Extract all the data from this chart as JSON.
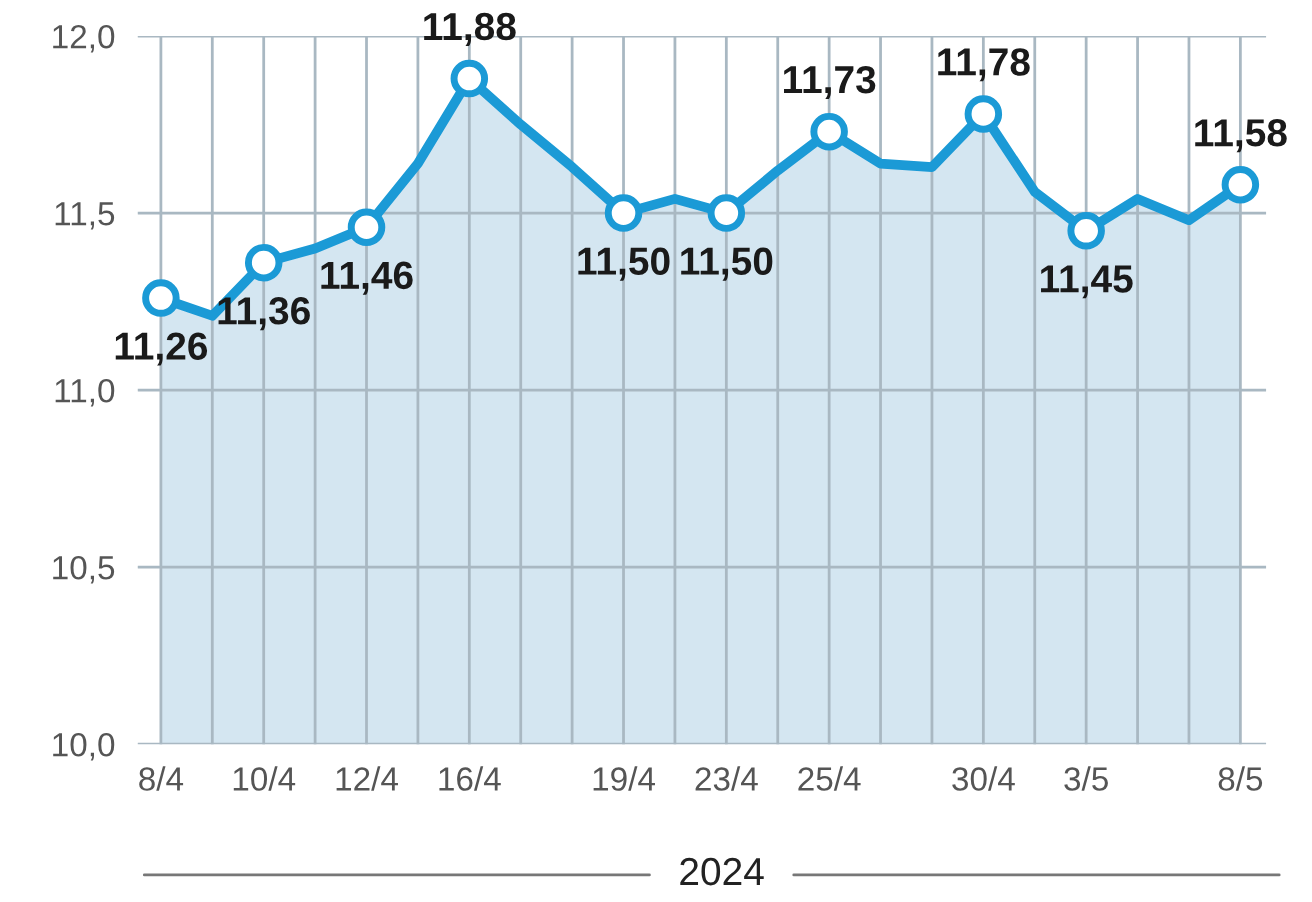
{
  "chart_data": {
    "type": "area",
    "categories": [
      "8/4",
      null,
      "10/4",
      null,
      "12/4",
      null,
      "16/4",
      null,
      null,
      "19/4",
      null,
      "23/4",
      null,
      "25/4",
      null,
      null,
      "30/4",
      null,
      "3/5",
      null,
      null,
      "8/5"
    ],
    "series": [
      {
        "color": "#1b9ad6",
        "values": [
          11.26,
          11.21,
          11.36,
          11.4,
          11.46,
          11.64,
          11.88,
          11.75,
          11.63,
          11.5,
          11.54,
          11.5,
          11.62,
          11.73,
          11.64,
          11.63,
          11.78,
          11.56,
          11.45,
          11.54,
          11.48,
          11.58
        ],
        "value_labels": [
          "11,26",
          null,
          "11,36",
          null,
          "11,46",
          null,
          "11,88",
          null,
          null,
          "11,50",
          null,
          "11,50",
          null,
          "11,73",
          null,
          null,
          "11,78",
          null,
          "11,45",
          null,
          null,
          "11,58"
        ]
      }
    ],
    "ylim": [
      10,
      12
    ],
    "yticks": [
      {
        "value": 10,
        "label": "10,0"
      },
      {
        "value": 10.5,
        "label": "10,5"
      },
      {
        "value": 11,
        "label": "11,0"
      },
      {
        "value": 11.5,
        "label": "11,5"
      },
      {
        "value": 12,
        "label": "12,0"
      }
    ],
    "xlabel": "2024",
    "grid": true,
    "line_style": "solid",
    "legend": false
  }
}
